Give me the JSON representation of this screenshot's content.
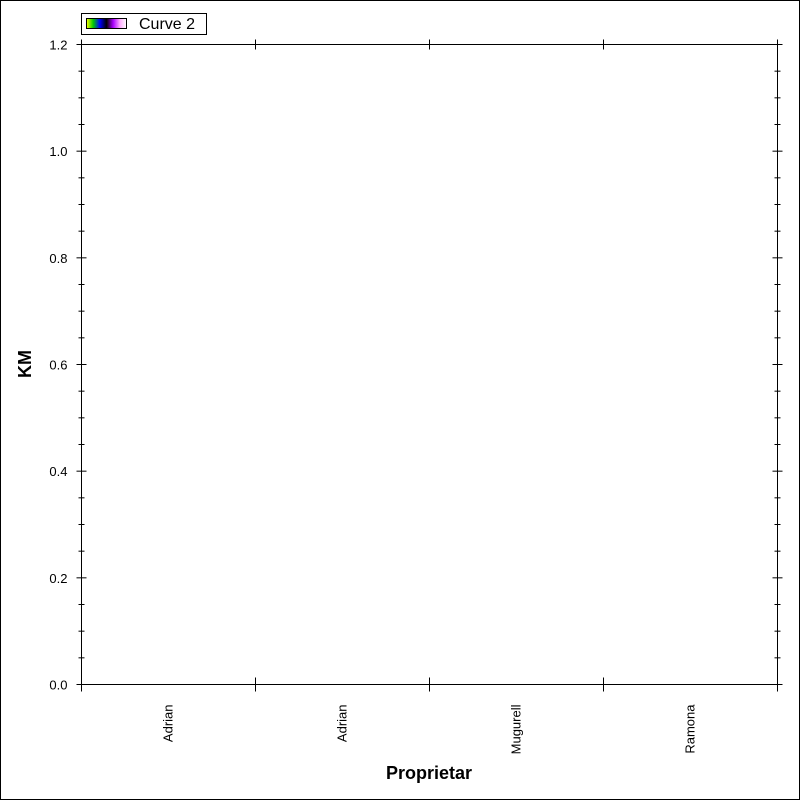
{
  "chart_data": {
    "type": "bar",
    "title": "",
    "xlabel": "Proprietar",
    "ylabel": "KM",
    "categories": [
      "Adrian",
      "Adrian",
      "Mugurell",
      "Ramona"
    ],
    "series": [
      {
        "name": "Curve 2",
        "values": [
          0,
          0,
          0,
          0
        ]
      }
    ],
    "ylim": [
      0,
      1.2
    ],
    "yticks": [
      0.0,
      0.2,
      0.4,
      0.6,
      0.8,
      1.0,
      1.2
    ],
    "ytick_labels": [
      "0.0",
      "0.2",
      "0.4",
      "0.6",
      "0.8",
      "1.0",
      "1.2"
    ],
    "grid": false,
    "legend_position": "top-left",
    "legend_swatch_colors": [
      "#ffff00",
      "#00cc00",
      "#0000ff",
      "#000000",
      "#aa00ff",
      "#ffaaff",
      "#ffffff"
    ],
    "frame_color": "#000000",
    "background_color": "#ffffff"
  }
}
